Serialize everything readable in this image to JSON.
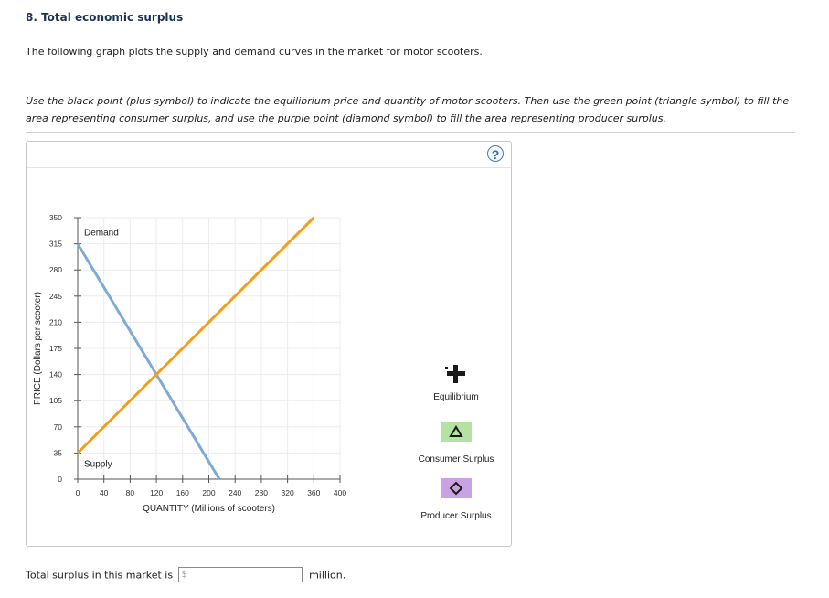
{
  "question": {
    "title": "8. Total economic surplus",
    "intro": "The following graph plots the supply and demand curves in the market for motor scooters.",
    "instructions": "Use the black point (plus symbol) to indicate the equilibrium price and quantity of motor scooters. Then use the green point (triangle symbol) to fill the area representing consumer surplus, and use the purple point (diamond symbol) to fill the area representing producer surplus."
  },
  "help": {
    "symbol": "?"
  },
  "chart_data": {
    "type": "line",
    "xlabel": "QUANTITY (Millions of scooters)",
    "ylabel": "PRICE (Dollars per scooter)",
    "xlim": [
      0,
      400
    ],
    "ylim": [
      0,
      350
    ],
    "xticks": [
      0,
      40,
      80,
      120,
      160,
      200,
      240,
      280,
      320,
      360,
      400
    ],
    "yticks": [
      0,
      35,
      70,
      105,
      140,
      175,
      210,
      245,
      280,
      315,
      350
    ],
    "grid": true,
    "series": [
      {
        "name": "Demand",
        "color": "#7eaad6",
        "points": [
          [
            0,
            315
          ],
          [
            216,
            0
          ]
        ]
      },
      {
        "name": "Supply",
        "color": "#f29e1b",
        "points": [
          [
            0,
            35
          ],
          [
            360,
            350
          ]
        ]
      }
    ]
  },
  "palette": [
    {
      "label": "Equilibrium",
      "icon": "plus-icon",
      "color": "#1a1a1a"
    },
    {
      "label": "Consumer Surplus",
      "icon": "triangle-icon",
      "color": "#b4e2a2"
    },
    {
      "label": "Producer Surplus",
      "icon": "diamond-icon",
      "color": "#c9a2e4"
    }
  ],
  "answer": {
    "prefix_text": "Total surplus in this market is",
    "currency": "$",
    "value": "",
    "suffix_text": "million."
  }
}
